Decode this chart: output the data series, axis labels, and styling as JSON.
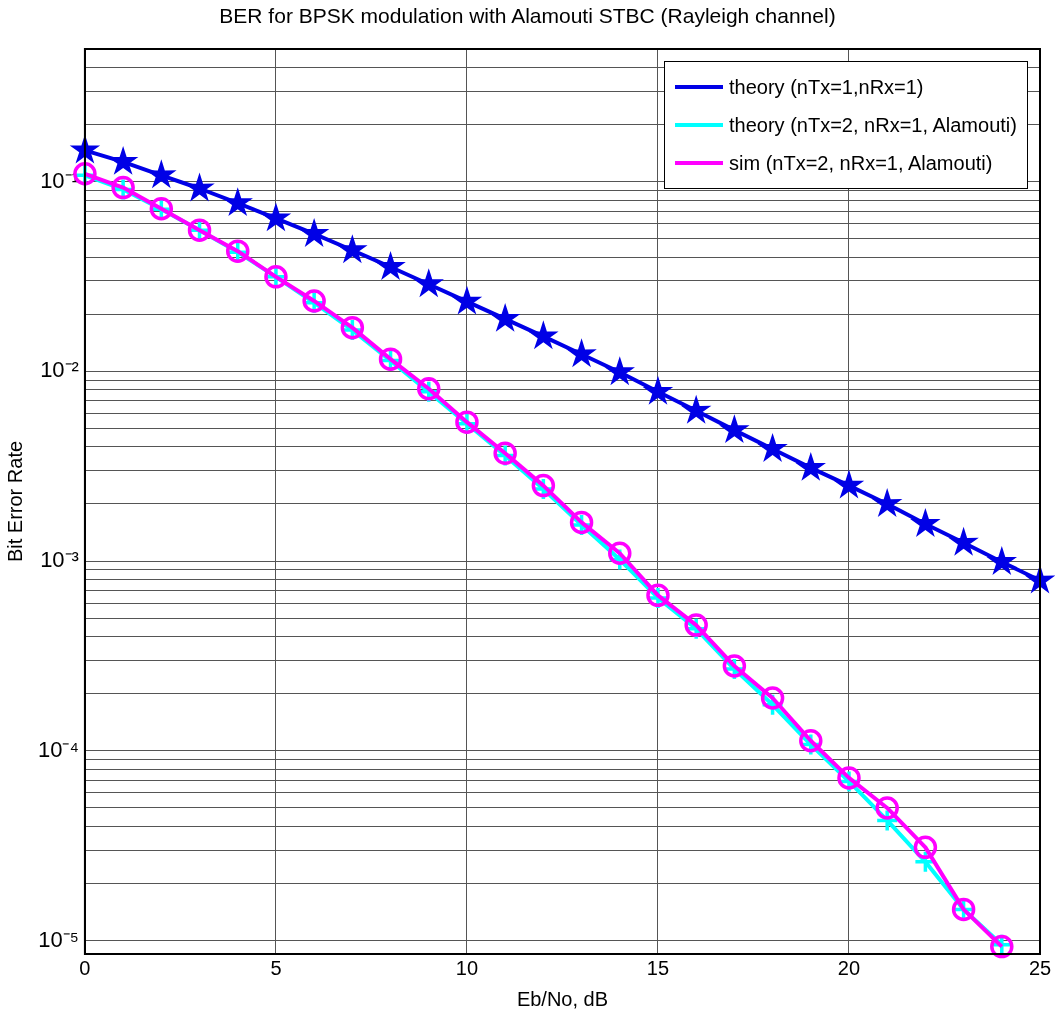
{
  "chart_data": {
    "type": "line",
    "title": "BER for BPSK modulation with Alamouti STBC (Rayleigh channel)",
    "xlabel": "Eb/No, dB",
    "ylabel": "Bit Error Rate",
    "x": [
      0,
      1,
      2,
      3,
      4,
      5,
      6,
      7,
      8,
      9,
      10,
      11,
      12,
      13,
      14,
      15,
      16,
      17,
      18,
      19,
      20,
      21,
      22,
      23,
      24,
      25
    ],
    "series": [
      {
        "name": "theory (nTx=1,nRx=1)",
        "color": "#0000e6",
        "marker": "star",
        "values": [
          0.146,
          0.127,
          0.108,
          0.092,
          0.077,
          0.064,
          0.053,
          0.0435,
          0.0355,
          0.0288,
          0.0233,
          0.0189,
          0.0153,
          0.0123,
          0.0099,
          0.0078,
          0.0062,
          0.0049,
          0.0039,
          0.0031,
          0.0025,
          0.002,
          0.00157,
          0.00125,
          0.00099,
          0.00079
        ]
      },
      {
        "name": "theory (nTx=2, nRx=1, Alamouti)",
        "color": "#00ffff",
        "marker": "cross",
        "x": [
          0,
          1,
          2,
          3,
          4,
          5,
          6,
          7,
          8,
          9,
          10,
          11,
          12,
          13,
          14,
          15,
          16,
          17,
          18,
          19,
          20,
          21,
          22,
          23,
          24
        ],
        "values": [
          0.108,
          0.091,
          0.0715,
          0.0555,
          0.0425,
          0.0315,
          0.023,
          0.0165,
          0.0114,
          0.0078,
          0.0053,
          0.0036,
          0.0024,
          0.00155,
          0.00102,
          0.00064,
          0.00044,
          0.00027,
          0.000175,
          0.000108,
          6.9e-05,
          4.3e-05,
          2.6e-05,
          1.46e-05,
          9.5e-06
        ]
      },
      {
        "name": "sim (nTx=2, nRx=1, Alamouti)",
        "color": "#ff00ff",
        "marker": "circle",
        "x": [
          0,
          1,
          2,
          3,
          4,
          5,
          6,
          7,
          8,
          9,
          10,
          11,
          12,
          13,
          14,
          15,
          16,
          17,
          18,
          19,
          20,
          21,
          22,
          23,
          24
        ],
        "values": [
          0.11,
          0.093,
          0.072,
          0.0555,
          0.043,
          0.0315,
          0.0235,
          0.017,
          0.0116,
          0.0081,
          0.0054,
          0.0037,
          0.0025,
          0.0016,
          0.0011,
          0.00066,
          0.00046,
          0.00028,
          0.00019,
          0.000113,
          7.2e-05,
          5e-05,
          3.1e-05,
          1.46e-05,
          9.3e-06
        ]
      }
    ],
    "xlim": [
      0,
      25
    ],
    "xticks": [
      0,
      5,
      10,
      15,
      20,
      25
    ],
    "ylim": [
      8.5e-06,
      0.5
    ],
    "log": true,
    "yticks": [
      {
        "value": 1e-05,
        "label": "10⁻⁵"
      },
      {
        "value": 2e-05,
        "label": null
      },
      {
        "value": 3e-05,
        "label": null
      },
      {
        "value": 4e-05,
        "label": null
      },
      {
        "value": 5e-05,
        "label": null
      },
      {
        "value": 6e-05,
        "label": null
      },
      {
        "value": 7e-05,
        "label": null
      },
      {
        "value": 8e-05,
        "label": null
      },
      {
        "value": 9e-05,
        "label": null
      },
      {
        "value": 0.0001,
        "label": "10⁻⁴"
      },
      {
        "value": 0.0002,
        "label": null
      },
      {
        "value": 0.0003,
        "label": null
      },
      {
        "value": 0.0004,
        "label": null
      },
      {
        "value": 0.0005,
        "label": null
      },
      {
        "value": 0.0006,
        "label": null
      },
      {
        "value": 0.0007,
        "label": null
      },
      {
        "value": 0.0008,
        "label": null
      },
      {
        "value": 0.0009,
        "label": null
      },
      {
        "value": 0.001,
        "label": "10⁻³"
      },
      {
        "value": 0.002,
        "label": null
      },
      {
        "value": 0.003,
        "label": null
      },
      {
        "value": 0.004,
        "label": null
      },
      {
        "value": 0.005,
        "label": null
      },
      {
        "value": 0.006,
        "label": null
      },
      {
        "value": 0.007,
        "label": null
      },
      {
        "value": 0.008,
        "label": null
      },
      {
        "value": 0.009,
        "label": null
      },
      {
        "value": 0.01,
        "label": "10⁻²"
      },
      {
        "value": 0.02,
        "label": null
      },
      {
        "value": 0.03,
        "label": null
      },
      {
        "value": 0.04,
        "label": null
      },
      {
        "value": 0.05,
        "label": null
      },
      {
        "value": 0.06,
        "label": null
      },
      {
        "value": 0.07,
        "label": null
      },
      {
        "value": 0.08,
        "label": null
      },
      {
        "value": 0.09,
        "label": null
      },
      {
        "value": 0.1,
        "label": "10⁻¹"
      },
      {
        "value": 0.2,
        "label": null
      },
      {
        "value": 0.3,
        "label": null
      },
      {
        "value": 0.4,
        "label": null
      },
      {
        "value": 0.5,
        "label": null
      }
    ],
    "grid": true,
    "legend": "top right",
    "line_style": "solid"
  }
}
